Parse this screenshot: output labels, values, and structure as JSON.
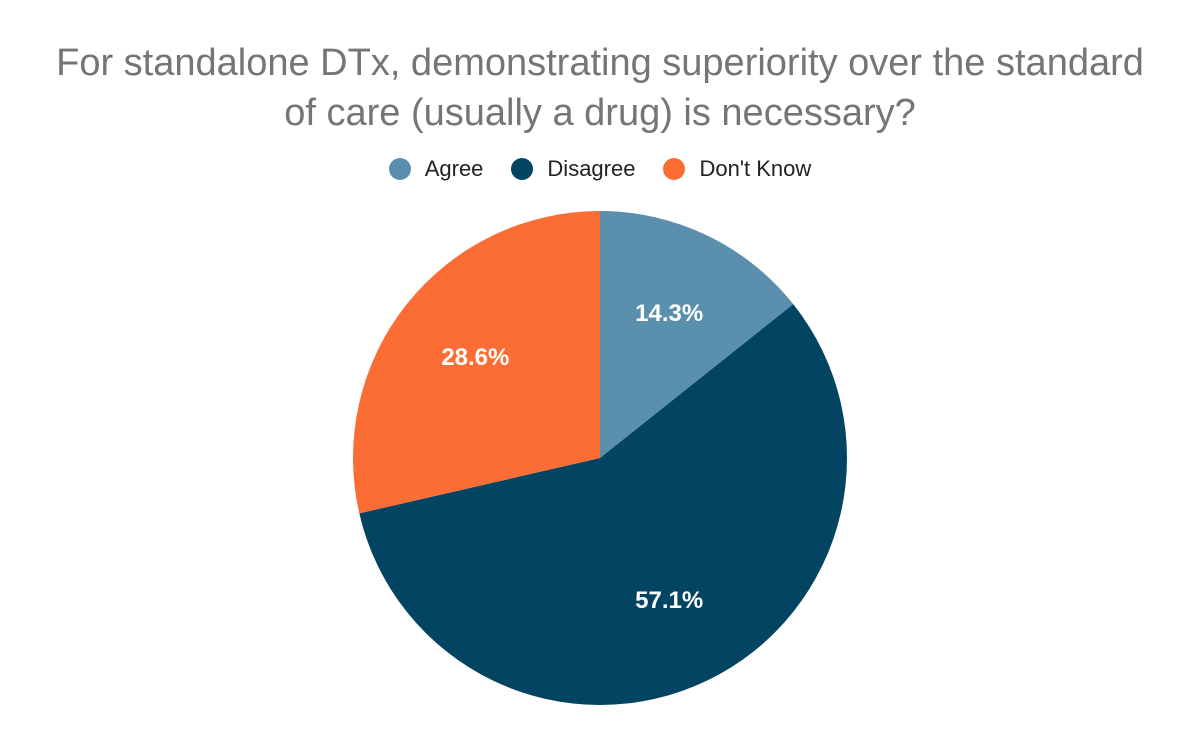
{
  "chart_data": {
    "type": "pie",
    "title_lines": [
      "For standalone DTx, demonstrating superiority over the standard",
      "of care (usually a drug) is necessary?"
    ],
    "legend_position": "top",
    "slices": [
      {
        "label": "Agree",
        "value": 14.3,
        "display": "14.3%",
        "color": "#5b8fae"
      },
      {
        "label": "Disagree",
        "value": 57.1,
        "display": "57.1%",
        "color": "#034463"
      },
      {
        "label": "Don't Know",
        "value": 28.6,
        "display": "28.6%",
        "color": "#fb6d34"
      }
    ]
  }
}
